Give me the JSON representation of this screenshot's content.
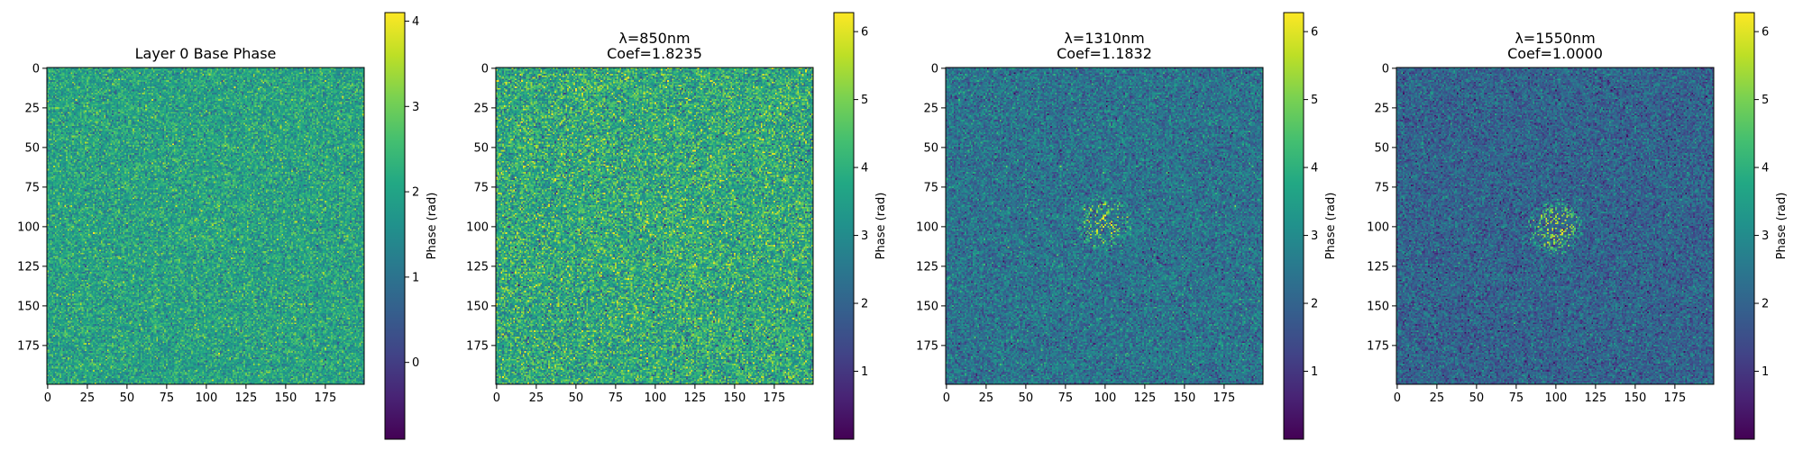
{
  "chart_data": [
    {
      "type": "heatmap",
      "title": "Layer 0 Base Phase",
      "xlim": [
        0,
        199
      ],
      "ylim": [
        199,
        0
      ],
      "x_ticks": [
        "0",
        "25",
        "50",
        "75",
        "100",
        "125",
        "150",
        "175"
      ],
      "y_ticks": [
        "0",
        "25",
        "50",
        "75",
        "100",
        "125",
        "150",
        "175"
      ],
      "colormap": "viridis",
      "colorbar": {
        "label": "Phase (rad)",
        "range": [
          -0.9,
          4.1
        ],
        "ticks": [
          "0",
          "1",
          "2",
          "3",
          "4"
        ]
      },
      "field": {
        "center_value": 2.0,
        "noise_std": 0.55,
        "feature_center": [
          100,
          95
        ],
        "feature_radius": 18,
        "feature_strength": 0.4
      }
    },
    {
      "type": "heatmap",
      "title": "λ=850nm\nCoef=1.8235",
      "xlim": [
        0,
        199
      ],
      "ylim": [
        199,
        0
      ],
      "x_ticks": [
        "0",
        "25",
        "50",
        "75",
        "100",
        "125",
        "150",
        "175"
      ],
      "y_ticks": [
        "0",
        "25",
        "50",
        "75",
        "100",
        "125",
        "150",
        "175"
      ],
      "colormap": "viridis",
      "colorbar": {
        "label": "Phase (rad)",
        "range": [
          0.0,
          6.28
        ],
        "ticks": [
          "1",
          "2",
          "3",
          "4",
          "5",
          "6"
        ]
      },
      "field": {
        "center_value": 3.8,
        "noise_std": 0.95,
        "feature_center": [
          105,
          95
        ],
        "feature_radius": 20,
        "feature_strength": 0.6
      }
    },
    {
      "type": "heatmap",
      "title": "λ=1310nm\nCoef=1.1832",
      "xlim": [
        0,
        199
      ],
      "ylim": [
        199,
        0
      ],
      "x_ticks": [
        "0",
        "25",
        "50",
        "75",
        "100",
        "125",
        "150",
        "175"
      ],
      "y_ticks": [
        "0",
        "25",
        "50",
        "75",
        "100",
        "125",
        "150",
        "175"
      ],
      "colormap": "viridis",
      "colorbar": {
        "label": "Phase (rad)",
        "range": [
          0.0,
          6.28
        ],
        "ticks": [
          "1",
          "2",
          "3",
          "4",
          "5",
          "6"
        ]
      },
      "field": {
        "center_value": 2.4,
        "noise_std": 0.65,
        "feature_center": [
          100,
          98
        ],
        "feature_radius": 18,
        "feature_strength": 2.4
      }
    },
    {
      "type": "heatmap",
      "title": "λ=1550nm\nCoef=1.0000",
      "xlim": [
        0,
        199
      ],
      "ylim": [
        199,
        0
      ],
      "x_ticks": [
        "0",
        "25",
        "50",
        "75",
        "100",
        "125",
        "150",
        "175"
      ],
      "y_ticks": [
        "0",
        "25",
        "50",
        "75",
        "100",
        "125",
        "150",
        "175"
      ],
      "colormap": "viridis",
      "colorbar": {
        "label": "Phase (rad)",
        "range": [
          0.0,
          6.28
        ],
        "ticks": [
          "1",
          "2",
          "3",
          "4",
          "5",
          "6"
        ]
      },
      "field": {
        "center_value": 2.0,
        "noise_std": 0.6,
        "feature_center": [
          100,
          100
        ],
        "feature_radius": 18,
        "feature_strength": 2.8
      }
    }
  ]
}
